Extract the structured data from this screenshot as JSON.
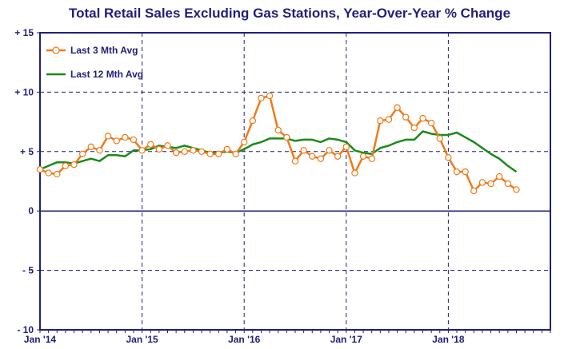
{
  "chart_data": {
    "type": "line",
    "title": "Total Retail Sales Excluding Gas Stations, Year-Over-Year % Change",
    "xlabel": "",
    "ylabel": "",
    "ylim": [
      -10,
      15
    ],
    "y_ticks": [
      15,
      10,
      5,
      0,
      -5,
      -10
    ],
    "y_tick_labels": [
      "+ 15",
      "+ 10",
      "+ 5",
      "0",
      "- 5",
      "- 10"
    ],
    "x_tick_labels": [
      "Jan '14",
      "Jan '15",
      "Jan '16",
      "Jan '17",
      "Jan '18"
    ],
    "x_start": "2014-01",
    "x_end": "2018-12",
    "legend_position": "top-left",
    "grid": true,
    "colors": {
      "three_month": "#f07a1a",
      "twelve_month": "#1a8a1a",
      "axis": "#1f1f7a",
      "grid": "#1f1f7a"
    },
    "series": [
      {
        "name": "Last 3 Mth Avg",
        "x": [
          "2014-01",
          "2014-02",
          "2014-03",
          "2014-04",
          "2014-05",
          "2014-06",
          "2014-07",
          "2014-08",
          "2014-09",
          "2014-10",
          "2014-11",
          "2014-12",
          "2015-01",
          "2015-02",
          "2015-03",
          "2015-04",
          "2015-05",
          "2015-06",
          "2015-07",
          "2015-08",
          "2015-09",
          "2015-10",
          "2015-11",
          "2015-12",
          "2016-01",
          "2016-02",
          "2016-03",
          "2016-04",
          "2016-05",
          "2016-06",
          "2016-07",
          "2016-08",
          "2016-09",
          "2016-10",
          "2016-11",
          "2016-12",
          "2017-01",
          "2017-02",
          "2017-03",
          "2017-04",
          "2017-05",
          "2017-06",
          "2017-07",
          "2017-08",
          "2017-09",
          "2017-10",
          "2017-11",
          "2017-12",
          "2018-01",
          "2018-02",
          "2018-03",
          "2018-04",
          "2018-05",
          "2018-06",
          "2018-07",
          "2018-08",
          "2018-09"
        ],
        "values": [
          3.5,
          3.2,
          3.1,
          3.8,
          3.9,
          4.8,
          5.4,
          5.1,
          6.3,
          5.9,
          6.2,
          6.0,
          5.1,
          5.6,
          5.2,
          5.5,
          4.9,
          5.0,
          5.1,
          5.0,
          4.8,
          4.8,
          5.2,
          4.8,
          5.8,
          7.6,
          9.5,
          9.7,
          6.8,
          6.2,
          4.2,
          5.1,
          4.6,
          4.4,
          5.1,
          4.6,
          5.4,
          3.2,
          4.6,
          4.4,
          7.6,
          7.7,
          8.7,
          7.9,
          7.0,
          7.8,
          7.4,
          6.1,
          4.5,
          3.3,
          3.3,
          1.7,
          2.4,
          2.3,
          2.9,
          2.3,
          1.8
        ],
        "markers": true
      },
      {
        "name": "Last 12 Mth Avg",
        "x": [
          "2014-01",
          "2014-02",
          "2014-03",
          "2014-04",
          "2014-05",
          "2014-06",
          "2014-07",
          "2014-08",
          "2014-09",
          "2014-10",
          "2014-11",
          "2014-12",
          "2015-01",
          "2015-02",
          "2015-03",
          "2015-04",
          "2015-05",
          "2015-06",
          "2015-07",
          "2015-08",
          "2015-09",
          "2015-10",
          "2015-11",
          "2015-12",
          "2016-01",
          "2016-02",
          "2016-03",
          "2016-04",
          "2016-05",
          "2016-06",
          "2016-07",
          "2016-08",
          "2016-09",
          "2016-10",
          "2016-11",
          "2016-12",
          "2017-01",
          "2017-02",
          "2017-03",
          "2017-04",
          "2017-05",
          "2017-06",
          "2017-07",
          "2017-08",
          "2017-09",
          "2017-10",
          "2017-11",
          "2017-12",
          "2018-01",
          "2018-02",
          "2018-03",
          "2018-04",
          "2018-05",
          "2018-06",
          "2018-07",
          "2018-08",
          "2018-09"
        ],
        "values": [
          3.5,
          3.8,
          4.1,
          4.1,
          4.0,
          4.2,
          4.4,
          4.2,
          4.7,
          4.7,
          4.6,
          5.1,
          5.1,
          5.2,
          5.5,
          5.4,
          5.3,
          5.5,
          5.3,
          5.1,
          4.9,
          4.9,
          5.0,
          4.9,
          5.2,
          5.6,
          5.8,
          6.1,
          6.1,
          6.1,
          5.9,
          6.0,
          6.0,
          5.8,
          6.1,
          6.0,
          5.8,
          5.1,
          4.9,
          4.8,
          5.3,
          5.5,
          5.8,
          6.0,
          6.0,
          6.7,
          6.5,
          6.4,
          6.4,
          6.6,
          6.2,
          5.8,
          5.3,
          4.8,
          4.4,
          3.8,
          3.3
        ],
        "markers": false
      }
    ]
  }
}
